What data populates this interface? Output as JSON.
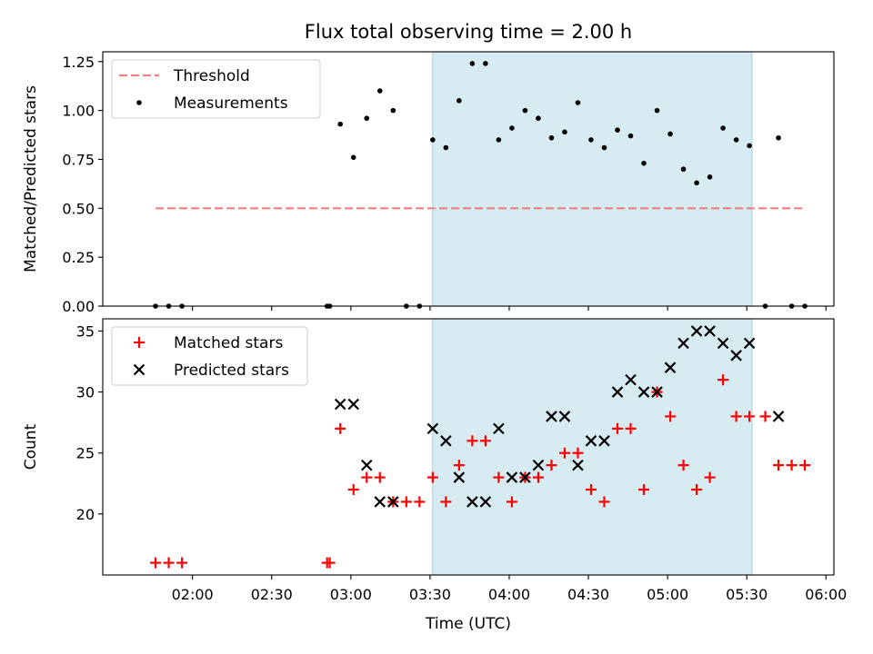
{
  "title": "Flux total observing time = 2.00 h",
  "colors": {
    "threshold": "#f08080",
    "measurement": "#000000",
    "matched": "#ff0000",
    "predicted": "#000000",
    "shade": "#add8e6"
  },
  "chart_data": [
    {
      "type": "scatter",
      "panel": "top",
      "ylabel": "Matched/Predicted stars",
      "ylim": [
        0,
        1.3
      ],
      "xlim": [
        "01:26",
        "06:03"
      ],
      "yticks": [
        0.0,
        0.25,
        0.5,
        0.75,
        1.0,
        1.25
      ],
      "ytick_labels": [
        "0.00",
        "0.25",
        "0.50",
        "0.75",
        "1.00",
        "1.25"
      ],
      "shaded_interval": [
        "03:31",
        "05:32"
      ],
      "legend_position": "top-left",
      "legend": [
        "Threshold",
        "Measurements"
      ],
      "threshold": {
        "name": "Threshold",
        "y": 0.5,
        "x": [
          "01:46",
          "05:52"
        ],
        "style": "dashed"
      },
      "series": [
        {
          "name": "Measurements",
          "marker": "dot",
          "points": [
            [
              "01:46",
              0.0
            ],
            [
              "01:51",
              0.0
            ],
            [
              "01:56",
              0.0
            ],
            [
              "02:51",
              0.0
            ],
            [
              "02:52",
              0.0
            ],
            [
              "02:56",
              0.93
            ],
            [
              "03:01",
              0.76
            ],
            [
              "03:06",
              0.96
            ],
            [
              "03:11",
              1.1
            ],
            [
              "03:16",
              1.0
            ],
            [
              "03:21",
              0.0
            ],
            [
              "03:26",
              0.0
            ],
            [
              "03:31",
              0.85
            ],
            [
              "03:36",
              0.81
            ],
            [
              "03:41",
              1.05
            ],
            [
              "03:46",
              1.24
            ],
            [
              "03:51",
              1.24
            ],
            [
              "03:56",
              0.85
            ],
            [
              "04:01",
              0.91
            ],
            [
              "04:06",
              1.0
            ],
            [
              "04:11",
              0.96
            ],
            [
              "04:16",
              0.86
            ],
            [
              "04:21",
              0.89
            ],
            [
              "04:26",
              1.04
            ],
            [
              "04:31",
              0.85
            ],
            [
              "04:36",
              0.81
            ],
            [
              "04:41",
              0.9
            ],
            [
              "04:46",
              0.87
            ],
            [
              "04:51",
              0.73
            ],
            [
              "04:56",
              1.0
            ],
            [
              "05:01",
              0.88
            ],
            [
              "05:06",
              0.7
            ],
            [
              "05:11",
              0.63
            ],
            [
              "05:16",
              0.66
            ],
            [
              "05:21",
              0.91
            ],
            [
              "05:26",
              0.85
            ],
            [
              "05:31",
              0.82
            ],
            [
              "05:37",
              0.0
            ],
            [
              "05:42",
              0.86
            ],
            [
              "05:47",
              0.0
            ],
            [
              "05:52",
              0.0
            ]
          ]
        }
      ]
    },
    {
      "type": "scatter",
      "panel": "bottom",
      "xlabel": "Time (UTC)",
      "ylabel": "Count",
      "ylim": [
        15,
        36
      ],
      "xlim": [
        "01:26",
        "06:03"
      ],
      "yticks": [
        20,
        25,
        30,
        35
      ],
      "ytick_labels": [
        "20",
        "25",
        "30",
        "35"
      ],
      "xticks": [
        "02:00",
        "02:30",
        "03:00",
        "03:30",
        "04:00",
        "04:30",
        "05:00",
        "05:30",
        "06:00"
      ],
      "shaded_interval": [
        "03:31",
        "05:32"
      ],
      "legend_position": "top-left",
      "legend": [
        "Matched stars",
        "Predicted stars"
      ],
      "series": [
        {
          "name": "Matched stars",
          "marker": "plus",
          "points": [
            [
              "01:46",
              16
            ],
            [
              "01:51",
              16
            ],
            [
              "01:56",
              16
            ],
            [
              "02:51",
              16
            ],
            [
              "02:52",
              16
            ],
            [
              "02:56",
              27
            ],
            [
              "03:01",
              22
            ],
            [
              "03:06",
              23
            ],
            [
              "03:11",
              23
            ],
            [
              "03:16",
              21
            ],
            [
              "03:21",
              21
            ],
            [
              "03:26",
              21
            ],
            [
              "03:31",
              23
            ],
            [
              "03:36",
              21
            ],
            [
              "03:41",
              24
            ],
            [
              "03:46",
              26
            ],
            [
              "03:51",
              26
            ],
            [
              "03:56",
              23
            ],
            [
              "04:01",
              21
            ],
            [
              "04:06",
              23
            ],
            [
              "04:11",
              23
            ],
            [
              "04:16",
              24
            ],
            [
              "04:21",
              25
            ],
            [
              "04:26",
              25
            ],
            [
              "04:31",
              22
            ],
            [
              "04:36",
              21
            ],
            [
              "04:41",
              27
            ],
            [
              "04:46",
              27
            ],
            [
              "04:51",
              22
            ],
            [
              "04:56",
              30
            ],
            [
              "05:01",
              28
            ],
            [
              "05:06",
              24
            ],
            [
              "05:11",
              22
            ],
            [
              "05:16",
              23
            ],
            [
              "05:21",
              31
            ],
            [
              "05:26",
              28
            ],
            [
              "05:31",
              28
            ],
            [
              "05:37",
              28
            ],
            [
              "05:42",
              24
            ],
            [
              "05:47",
              24
            ],
            [
              "05:52",
              24
            ]
          ]
        },
        {
          "name": "Predicted stars",
          "marker": "x",
          "points": [
            [
              "02:56",
              29
            ],
            [
              "03:01",
              29
            ],
            [
              "03:06",
              24
            ],
            [
              "03:11",
              21
            ],
            [
              "03:16",
              21
            ],
            [
              "03:31",
              27
            ],
            [
              "03:36",
              26
            ],
            [
              "03:41",
              23
            ],
            [
              "03:46",
              21
            ],
            [
              "03:51",
              21
            ],
            [
              "03:56",
              27
            ],
            [
              "04:01",
              23
            ],
            [
              "04:06",
              23
            ],
            [
              "04:11",
              24
            ],
            [
              "04:16",
              28
            ],
            [
              "04:21",
              28
            ],
            [
              "04:26",
              24
            ],
            [
              "04:31",
              26
            ],
            [
              "04:36",
              26
            ],
            [
              "04:41",
              30
            ],
            [
              "04:46",
              31
            ],
            [
              "04:51",
              30
            ],
            [
              "04:56",
              30
            ],
            [
              "05:01",
              32
            ],
            [
              "05:06",
              34
            ],
            [
              "05:11",
              35
            ],
            [
              "05:16",
              35
            ],
            [
              "05:21",
              34
            ],
            [
              "05:26",
              33
            ],
            [
              "05:31",
              34
            ],
            [
              "05:42",
              28
            ]
          ]
        }
      ]
    }
  ]
}
